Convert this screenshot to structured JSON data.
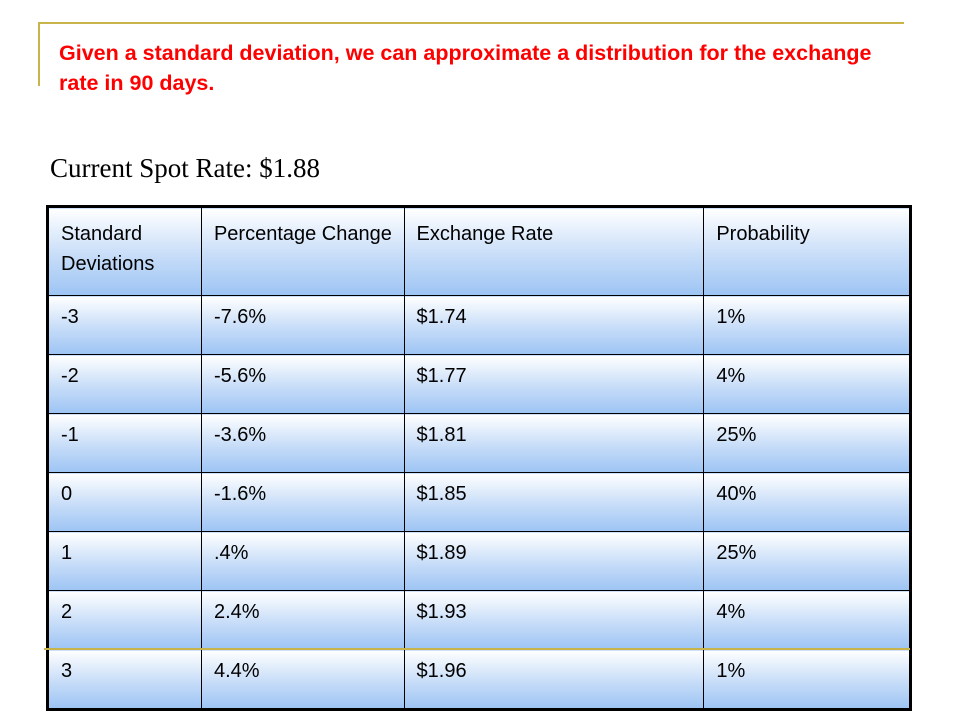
{
  "slide": {
    "heading": "Given a standard deviation, we can approximate a distribution for the exchange rate in 90 days.",
    "spot_rate": "Current Spot Rate: $1.88"
  },
  "table": {
    "headers": [
      "Standard Deviations",
      "Percentage Change",
      "Exchange Rate",
      "Probability"
    ],
    "rows": [
      [
        "-3",
        "-7.6%",
        "$1.74",
        "1%"
      ],
      [
        "-2",
        "-5.6%",
        "$1.77",
        "4%"
      ],
      [
        "-1",
        "-3.6%",
        "$1.81",
        "25%"
      ],
      [
        "0",
        "-1.6%",
        "$1.85",
        "40%"
      ],
      [
        "1",
        ".4%",
        "$1.89",
        "25%"
      ],
      [
        "2",
        "2.4%",
        "$1.93",
        "4%"
      ],
      [
        "3",
        "4.4%",
        "$1.96",
        "1%"
      ]
    ]
  },
  "colors": {
    "heading": "#ff0000",
    "rule": "#c8b44a",
    "cell_gradient_bottom": "#9dc4f4"
  }
}
